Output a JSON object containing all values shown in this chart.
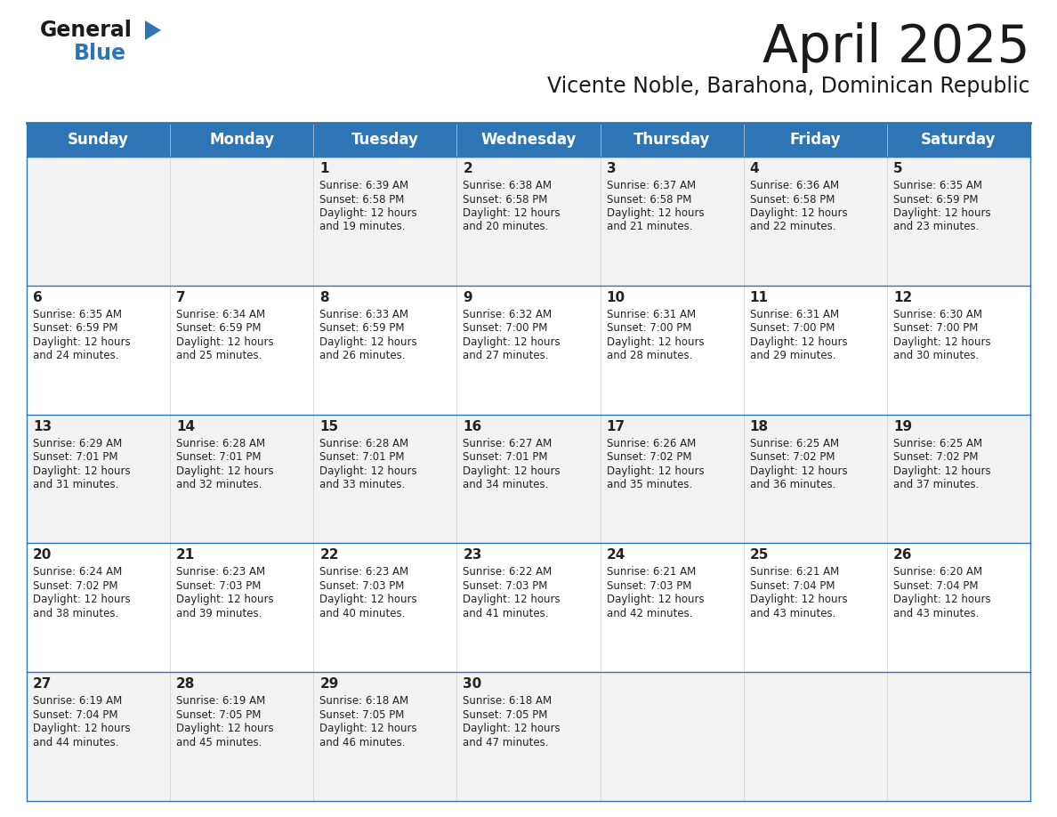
{
  "title": "April 2025",
  "subtitle": "Vicente Noble, Barahona, Dominican Republic",
  "header_bg_color": "#2e75b6",
  "header_text_color": "#ffffff",
  "cell_bg_even": "#f2f2f2",
  "cell_bg_odd": "#ffffff",
  "cell_border_color": "#2e75b6",
  "title_color": "#1a1a1a",
  "subtitle_color": "#1a1a1a",
  "days_of_week": [
    "Sunday",
    "Monday",
    "Tuesday",
    "Wednesday",
    "Thursday",
    "Friday",
    "Saturday"
  ],
  "weeks": [
    [
      {
        "day": "",
        "sunrise": "",
        "sunset": "",
        "daylight": ""
      },
      {
        "day": "",
        "sunrise": "",
        "sunset": "",
        "daylight": ""
      },
      {
        "day": "1",
        "sunrise": "6:39 AM",
        "sunset": "6:58 PM",
        "daylight": "12 hours and 19 minutes."
      },
      {
        "day": "2",
        "sunrise": "6:38 AM",
        "sunset": "6:58 PM",
        "daylight": "12 hours and 20 minutes."
      },
      {
        "day": "3",
        "sunrise": "6:37 AM",
        "sunset": "6:58 PM",
        "daylight": "12 hours and 21 minutes."
      },
      {
        "day": "4",
        "sunrise": "6:36 AM",
        "sunset": "6:58 PM",
        "daylight": "12 hours and 22 minutes."
      },
      {
        "day": "5",
        "sunrise": "6:35 AM",
        "sunset": "6:59 PM",
        "daylight": "12 hours and 23 minutes."
      }
    ],
    [
      {
        "day": "6",
        "sunrise": "6:35 AM",
        "sunset": "6:59 PM",
        "daylight": "12 hours and 24 minutes."
      },
      {
        "day": "7",
        "sunrise": "6:34 AM",
        "sunset": "6:59 PM",
        "daylight": "12 hours and 25 minutes."
      },
      {
        "day": "8",
        "sunrise": "6:33 AM",
        "sunset": "6:59 PM",
        "daylight": "12 hours and 26 minutes."
      },
      {
        "day": "9",
        "sunrise": "6:32 AM",
        "sunset": "7:00 PM",
        "daylight": "12 hours and 27 minutes."
      },
      {
        "day": "10",
        "sunrise": "6:31 AM",
        "sunset": "7:00 PM",
        "daylight": "12 hours and 28 minutes."
      },
      {
        "day": "11",
        "sunrise": "6:31 AM",
        "sunset": "7:00 PM",
        "daylight": "12 hours and 29 minutes."
      },
      {
        "day": "12",
        "sunrise": "6:30 AM",
        "sunset": "7:00 PM",
        "daylight": "12 hours and 30 minutes."
      }
    ],
    [
      {
        "day": "13",
        "sunrise": "6:29 AM",
        "sunset": "7:01 PM",
        "daylight": "12 hours and 31 minutes."
      },
      {
        "day": "14",
        "sunrise": "6:28 AM",
        "sunset": "7:01 PM",
        "daylight": "12 hours and 32 minutes."
      },
      {
        "day": "15",
        "sunrise": "6:28 AM",
        "sunset": "7:01 PM",
        "daylight": "12 hours and 33 minutes."
      },
      {
        "day": "16",
        "sunrise": "6:27 AM",
        "sunset": "7:01 PM",
        "daylight": "12 hours and 34 minutes."
      },
      {
        "day": "17",
        "sunrise": "6:26 AM",
        "sunset": "7:02 PM",
        "daylight": "12 hours and 35 minutes."
      },
      {
        "day": "18",
        "sunrise": "6:25 AM",
        "sunset": "7:02 PM",
        "daylight": "12 hours and 36 minutes."
      },
      {
        "day": "19",
        "sunrise": "6:25 AM",
        "sunset": "7:02 PM",
        "daylight": "12 hours and 37 minutes."
      }
    ],
    [
      {
        "day": "20",
        "sunrise": "6:24 AM",
        "sunset": "7:02 PM",
        "daylight": "12 hours and 38 minutes."
      },
      {
        "day": "21",
        "sunrise": "6:23 AM",
        "sunset": "7:03 PM",
        "daylight": "12 hours and 39 minutes."
      },
      {
        "day": "22",
        "sunrise": "6:23 AM",
        "sunset": "7:03 PM",
        "daylight": "12 hours and 40 minutes."
      },
      {
        "day": "23",
        "sunrise": "6:22 AM",
        "sunset": "7:03 PM",
        "daylight": "12 hours and 41 minutes."
      },
      {
        "day": "24",
        "sunrise": "6:21 AM",
        "sunset": "7:03 PM",
        "daylight": "12 hours and 42 minutes."
      },
      {
        "day": "25",
        "sunrise": "6:21 AM",
        "sunset": "7:04 PM",
        "daylight": "12 hours and 43 minutes."
      },
      {
        "day": "26",
        "sunrise": "6:20 AM",
        "sunset": "7:04 PM",
        "daylight": "12 hours and 43 minutes."
      }
    ],
    [
      {
        "day": "27",
        "sunrise": "6:19 AM",
        "sunset": "7:04 PM",
        "daylight": "12 hours and 44 minutes."
      },
      {
        "day": "28",
        "sunrise": "6:19 AM",
        "sunset": "7:05 PM",
        "daylight": "12 hours and 45 minutes."
      },
      {
        "day": "29",
        "sunrise": "6:18 AM",
        "sunset": "7:05 PM",
        "daylight": "12 hours and 46 minutes."
      },
      {
        "day": "30",
        "sunrise": "6:18 AM",
        "sunset": "7:05 PM",
        "daylight": "12 hours and 47 minutes."
      },
      {
        "day": "",
        "sunrise": "",
        "sunset": "",
        "daylight": ""
      },
      {
        "day": "",
        "sunrise": "",
        "sunset": "",
        "daylight": ""
      },
      {
        "day": "",
        "sunrise": "",
        "sunset": "",
        "daylight": ""
      }
    ]
  ],
  "logo_triangle_color": "#2e75b6",
  "logo_general_color": "#1a1a1a",
  "logo_blue_color": "#2e75b6"
}
